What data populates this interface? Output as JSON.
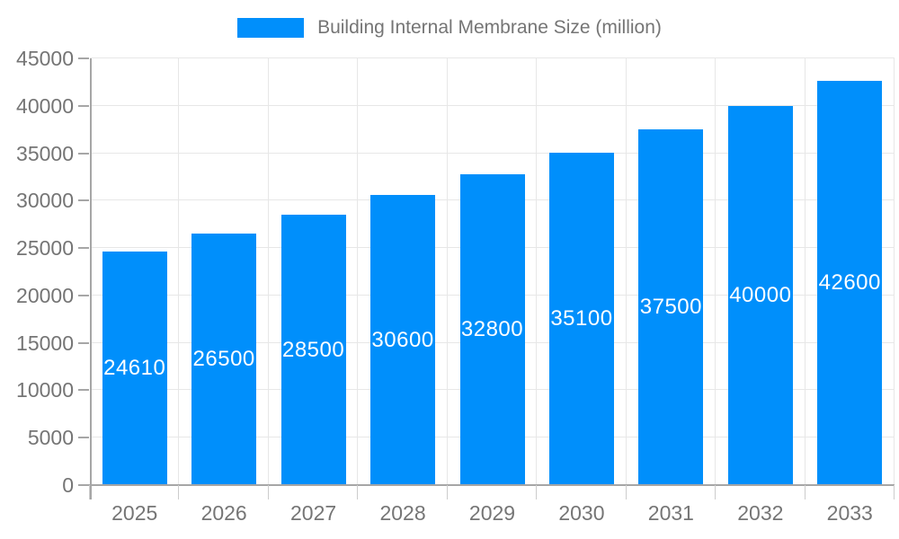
{
  "legend": {
    "label": "Building Internal Membrane Size (million)"
  },
  "colors": {
    "bar": "#008FFB",
    "bar_value_text": "#ffffff",
    "axis_text": "#757575",
    "legend_text": "#757575",
    "grid_line": "#e7e7e7",
    "axis_line": "#a6a6a6",
    "tick_mark_y": "#a6a6a6",
    "tick_mark_x": "#cccccc",
    "background": "#ffffff"
  },
  "chart_data": {
    "type": "bar",
    "title": "",
    "categories": [
      "2025",
      "2026",
      "2027",
      "2028",
      "2029",
      "2030",
      "2031",
      "2032",
      "2033"
    ],
    "series": [
      {
        "name": "Building Internal Membrane Size (million)",
        "values": [
          24610,
          26500,
          28500,
          30600,
          32800,
          35100,
          37500,
          40000,
          42600
        ]
      }
    ],
    "data_labels": [
      24610,
      26500,
      28500,
      30600,
      32800,
      35100,
      37500,
      40000,
      42600
    ],
    "xlabel": "",
    "ylabel": "",
    "ylim": [
      0,
      45000
    ],
    "ytick_step": 5000,
    "yticks": [
      0,
      5000,
      10000,
      15000,
      20000,
      25000,
      30000,
      35000,
      40000,
      45000
    ],
    "grid": true,
    "legend_position": "top"
  }
}
